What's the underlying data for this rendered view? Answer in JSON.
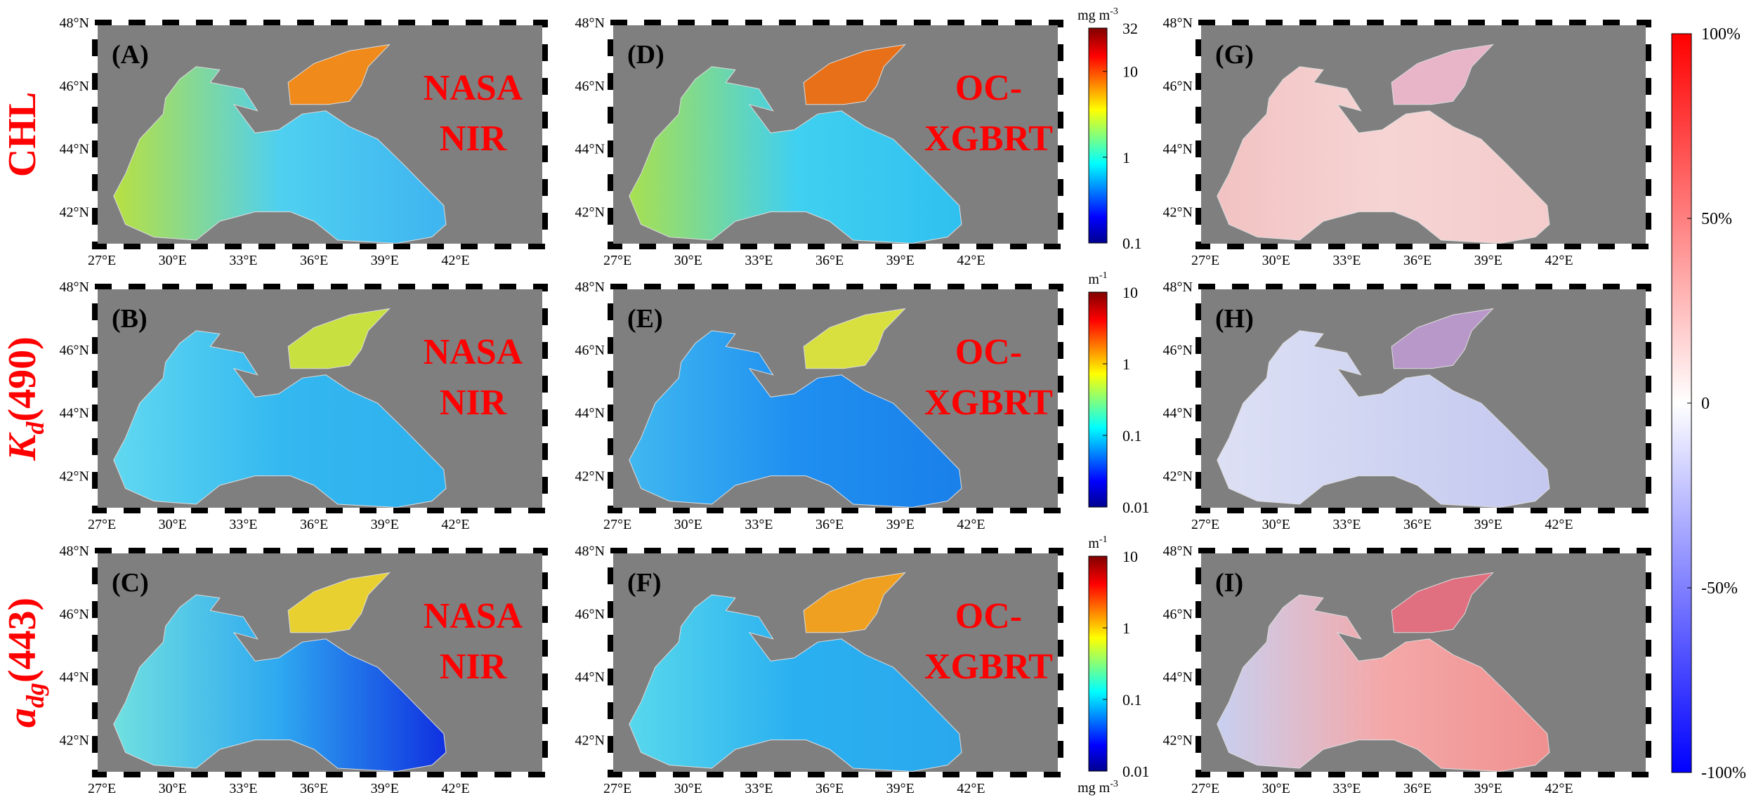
{
  "row_labels": [
    {
      "main": "CHL"
    },
    {
      "main": "K",
      "sub": "d",
      "rest": "(490)"
    },
    {
      "main": "a",
      "sub": "dg",
      "rest": "(443)"
    }
  ],
  "lat_ticks": [
    {
      "value": 48,
      "label": "48°N"
    },
    {
      "value": 46,
      "label": "46°N"
    },
    {
      "value": 44,
      "label": "44°N"
    },
    {
      "value": 42,
      "label": "42°N"
    }
  ],
  "lon_ticks": [
    {
      "value": 27,
      "label": "27°E"
    },
    {
      "value": 30,
      "label": "30°E"
    },
    {
      "value": 33,
      "label": "33°E"
    },
    {
      "value": 36,
      "label": "36°E"
    },
    {
      "value": 39,
      "label": "39°E"
    },
    {
      "value": 42,
      "label": "42°E"
    }
  ],
  "panels": [
    {
      "col": 0,
      "row": 0,
      "letter": "(A)",
      "method": [
        "NASA",
        "NIR"
      ],
      "sea": [
        "#b8e040",
        "#4fd0f0",
        "#3fb4f0"
      ],
      "azov": "#f08a1a"
    },
    {
      "col": 0,
      "row": 1,
      "letter": "(B)",
      "method": [
        "NASA",
        "NIR"
      ],
      "sea": [
        "#60d8f0",
        "#34b8f0",
        "#2eb0ee"
      ],
      "azov": "#c8e040"
    },
    {
      "col": 0,
      "row": 2,
      "letter": "(C)",
      "method": [
        "NASA",
        "NIR"
      ],
      "sea": [
        "#70e0e0",
        "#2ea8f0",
        "#1030e0"
      ],
      "azov": "#e8d030"
    },
    {
      "col": 1,
      "row": 0,
      "letter": "(D)",
      "method": [
        "OC-",
        "XGBRT"
      ],
      "sea": [
        "#a8e050",
        "#40d0f0",
        "#30c0f0"
      ],
      "azov": "#e87018"
    },
    {
      "col": 1,
      "row": 1,
      "letter": "(E)",
      "method": [
        "OC-",
        "XGBRT"
      ],
      "sea": [
        "#40b8f0",
        "#1f8ff0",
        "#1a80ea"
      ],
      "azov": "#d8e040"
    },
    {
      "col": 1,
      "row": 2,
      "letter": "(F)",
      "method": [
        "OC-",
        "XGBRT"
      ],
      "sea": [
        "#58d8ec",
        "#2ab0f0",
        "#2aa8ee"
      ],
      "azov": "#f0a020"
    },
    {
      "col": 2,
      "row": 0,
      "letter": "(G)",
      "sea": [
        "#f2c2c2",
        "#f6d4d4",
        "#f4cccc"
      ],
      "azov": "#e8b4c8"
    },
    {
      "col": 2,
      "row": 1,
      "letter": "(H)",
      "sea": [
        "#dde0f4",
        "#cfd4f2",
        "#c4c8f0"
      ],
      "azov": "#b898c8"
    },
    {
      "col": 2,
      "row": 2,
      "letter": "(I)",
      "sea": [
        "#c8d0f0",
        "#f4a8a8",
        "#f09090"
      ],
      "azov": "#e07080"
    }
  ],
  "colorbars": [
    {
      "row": 0,
      "unit_top": {
        "base": "mg m",
        "sup": "-3"
      },
      "ticks": [
        {
          "value": 32,
          "label": "32"
        },
        {
          "value": 10,
          "label": "10"
        },
        {
          "value": 1,
          "label": "1"
        },
        {
          "value": 0.1,
          "label": "0.1"
        }
      ]
    },
    {
      "row": 1,
      "unit_top": {
        "base": "m",
        "sup": "-1"
      },
      "ticks": [
        {
          "value": 10,
          "label": "10"
        },
        {
          "value": 1,
          "label": "1"
        },
        {
          "value": 0.1,
          "label": "0.1"
        },
        {
          "value": 0.01,
          "label": "0.01"
        }
      ]
    },
    {
      "row": 2,
      "unit_top": {
        "base": "m",
        "sup": "-1"
      },
      "unit_bottom": {
        "base": "mg m",
        "sup": "-3"
      },
      "ticks": [
        {
          "value": 10,
          "label": "10"
        },
        {
          "value": 1,
          "label": "1"
        },
        {
          "value": 0.1,
          "label": "0.1"
        },
        {
          "value": 0.01,
          "label": "0.01"
        }
      ]
    }
  ],
  "diff_colorbar": {
    "ticks": [
      {
        "value": 100,
        "label": "100%"
      },
      {
        "value": 50,
        "label": "50%"
      },
      {
        "value": 0,
        "label": "0"
      },
      {
        "value": -50,
        "label": "-50%"
      },
      {
        "value": -100,
        "label": "-100%"
      }
    ]
  }
}
